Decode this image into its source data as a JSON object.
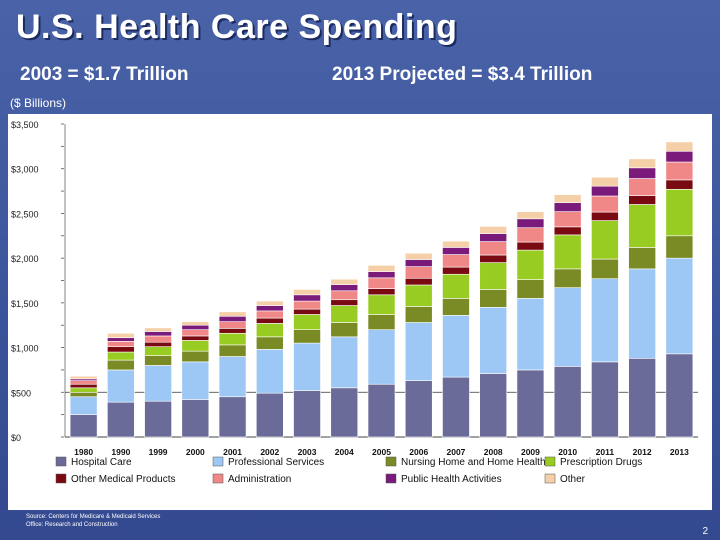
{
  "header": {
    "title": "U.S. Health Care Spending",
    "sub_left": "2003 = $1.7 Trillion",
    "sub_right": "2013 Projected = $3.4 Trillion",
    "units": "($ Billions)"
  },
  "footer": {
    "source_line1": "Source: Centers for Medicare & Medicaid Services",
    "source_line2": "Office: Research and Construction",
    "page_number": "2"
  },
  "chart_data": {
    "type": "bar",
    "stacked": true,
    "ylim": [
      0,
      3500
    ],
    "yticks": [
      0,
      500,
      1000,
      1500,
      2000,
      2500,
      3000,
      3500
    ],
    "ytick_labels": [
      "$0",
      "$500",
      "$1,000",
      "$1,500",
      "$2,000",
      "$2,500",
      "$3,000",
      "$3,500"
    ],
    "categories": [
      "1980",
      "1990",
      "1999",
      "2000",
      "2001",
      "2002",
      "2003",
      "2004",
      "2005",
      "2006",
      "2007",
      "2008",
      "2009",
      "2010",
      "2011",
      "2012",
      "2013"
    ],
    "series": [
      {
        "name": "Hospital Care",
        "color": "#6b6b99",
        "values": [
          250,
          390,
          400,
          420,
          450,
          490,
          520,
          550,
          590,
          630,
          670,
          710,
          750,
          790,
          840,
          880,
          930
        ]
      },
      {
        "name": "Professional Services",
        "color": "#9dc8f5",
        "values": [
          200,
          360,
          400,
          420,
          450,
          490,
          530,
          570,
          610,
          650,
          690,
          740,
          800,
          880,
          930,
          1000,
          1070
        ]
      },
      {
        "name": "Nursing Home and Home Health",
        "color": "#7a8a24",
        "values": [
          50,
          110,
          110,
          120,
          130,
          140,
          150,
          160,
          170,
          180,
          190,
          200,
          210,
          210,
          220,
          240,
          250
        ]
      },
      {
        "name": "Prescription Drugs",
        "color": "#99cc22",
        "values": [
          50,
          90,
          100,
          120,
          130,
          150,
          170,
          190,
          220,
          240,
          270,
          300,
          330,
          380,
          430,
          480,
          520
        ]
      },
      {
        "name": "Other Medical Products",
        "color": "#7a0a12",
        "values": [
          40,
          60,
          50,
          50,
          55,
          60,
          60,
          65,
          70,
          75,
          80,
          85,
          90,
          90,
          95,
          100,
          105
        ]
      },
      {
        "name": "Administration",
        "color": "#f08888",
        "values": [
          40,
          60,
          70,
          70,
          75,
          80,
          90,
          100,
          120,
          130,
          140,
          150,
          160,
          170,
          180,
          190,
          200
        ]
      },
      {
        "name": "Public Health Activities",
        "color": "#7a1a7a",
        "values": [
          20,
          40,
          50,
          50,
          60,
          60,
          70,
          70,
          70,
          80,
          80,
          90,
          100,
          100,
          110,
          120,
          120
        ]
      },
      {
        "name": "Other",
        "color": "#f5cfa8",
        "values": [
          30,
          50,
          40,
          40,
          50,
          50,
          60,
          60,
          70,
          70,
          70,
          80,
          80,
          90,
          100,
          100,
          105
        ]
      }
    ]
  }
}
